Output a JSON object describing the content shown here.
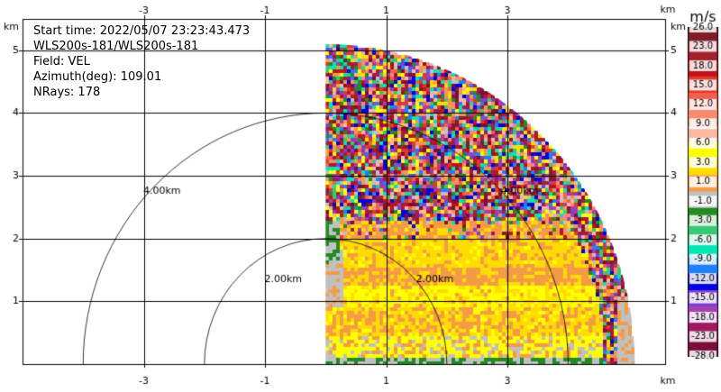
{
  "info": {
    "start_time": "Start time: 2022/05/07 23:23:43.473",
    "instrument": "WLS200s-181/WLS200s-181",
    "field": "Field: VEL",
    "azimuth": "Azimuth(deg): 109.01",
    "nrays": "NRays: 178"
  },
  "chart_data": {
    "type": "heatmap",
    "xlabel": "km",
    "ylabel": "km",
    "xlim": [
      -5.0,
      5.6
    ],
    "ylim": [
      0,
      5.5
    ],
    "xticks": [
      -3,
      -1,
      1,
      3
    ],
    "yticks": [
      1,
      2,
      3,
      4,
      5
    ],
    "range_rings": [
      {
        "radius": 2.0,
        "label": "2.00km"
      },
      {
        "radius": 4.0,
        "label": "4.00km"
      }
    ],
    "sector": {
      "az_start_deg": 0,
      "az_end_deg": 90,
      "max_range_km": 5.1
    },
    "colorbar": {
      "title": "m/s",
      "ticks": [
        "26.0",
        "23.0",
        "18.0",
        "15.0",
        "12.0",
        "9.0",
        "6.0",
        "3.0",
        "1.0",
        "-1.0",
        "-3.0",
        "-6.0",
        "-9.0",
        "-12.0",
        "-15.0",
        "-18.0",
        "-23.0",
        "-28.0"
      ],
      "colors": [
        "#7f1d2a",
        "#a3202e",
        "#c1121c",
        "#e03a2a",
        "#f2604d",
        "#f98a70",
        "#fcb99e",
        "#ffff00",
        "#ffdc00",
        "#f59b48",
        "#c0c0c0",
        "#228b22",
        "#39c776",
        "#00e6b4",
        "#1e7fff",
        "#0000e0",
        "#7e3fd1",
        "#a53fb0",
        "#a0185e",
        "#7b0c3c"
      ]
    }
  }
}
